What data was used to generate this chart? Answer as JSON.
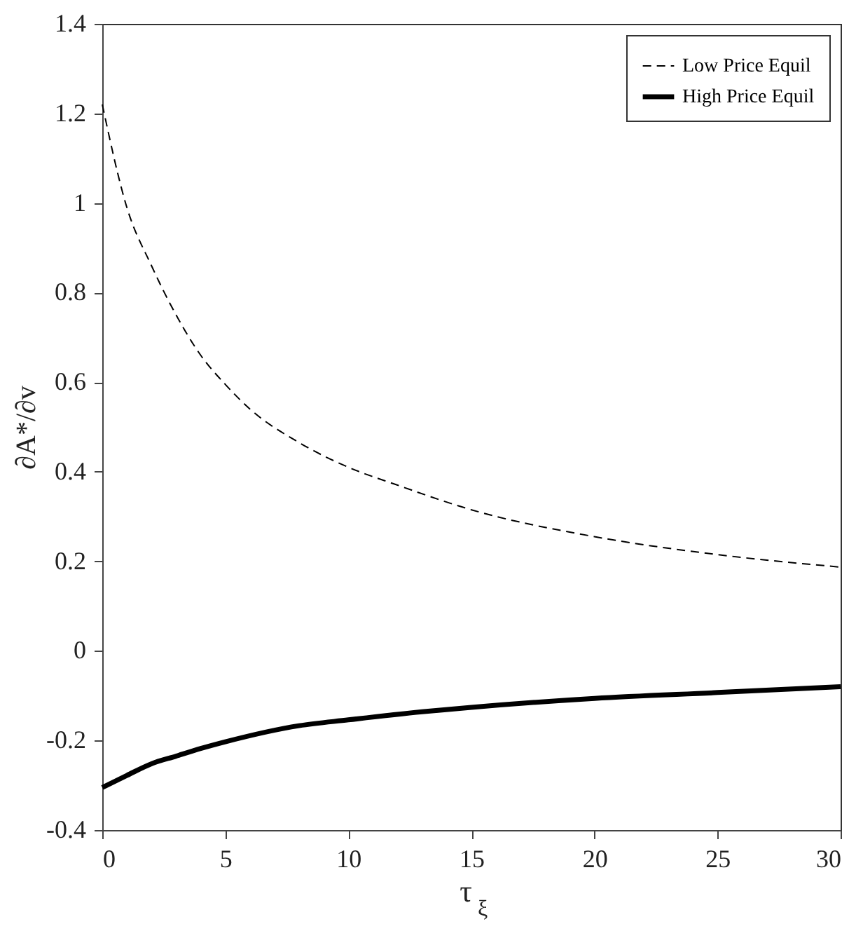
{
  "chart_data": {
    "type": "line",
    "xlabel": "τ$_{ξ}$",
    "ylabel": "∂A*/∂v",
    "xlim": [
      0,
      30
    ],
    "xticks": [
      0,
      5,
      10,
      15,
      20,
      25,
      30
    ],
    "ylim": [
      -0.4,
      1.4
    ],
    "yticks": [
      -0.4,
      -0.2,
      0,
      0.2,
      0.4,
      0.6,
      0.8,
      1,
      1.2,
      1.4
    ],
    "grid": false,
    "legend": "top right",
    "marker": "none",
    "series": [
      {
        "name": "Low Price Equil",
        "color": "#000000",
        "line_style": "dashed",
        "x": [
          0,
          1,
          2,
          3,
          4,
          5,
          6,
          8,
          10,
          12,
          15,
          20,
          25,
          30
        ],
        "values": [
          1.22,
          0.99,
          0.86,
          0.75,
          0.66,
          0.595,
          0.54,
          0.465,
          0.41,
          0.37,
          0.315,
          0.255,
          0.215,
          0.187
        ]
      },
      {
        "name": "High Price Equil",
        "color": "#000000",
        "line_style": "solid",
        "x": [
          0,
          1,
          2,
          3,
          4,
          5,
          8,
          10,
          13,
          15,
          20,
          25,
          30
        ],
        "values": [
          -0.305,
          -0.278,
          -0.252,
          -0.235,
          -0.218,
          -0.203,
          -0.167,
          -0.154,
          -0.136,
          -0.126,
          -0.106,
          -0.093,
          -0.08
        ]
      }
    ]
  }
}
